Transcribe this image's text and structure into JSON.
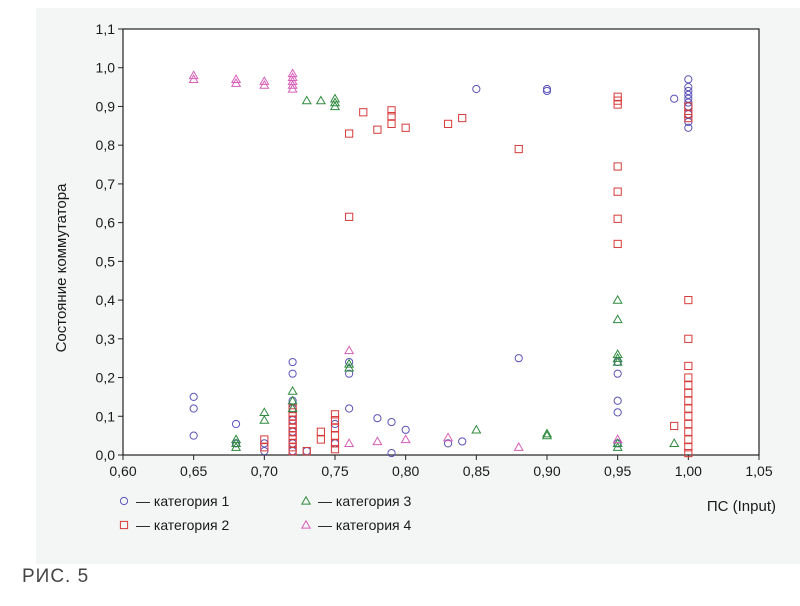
{
  "figure_caption": "РИС. 5",
  "chart_data": {
    "type": "scatter",
    "title": "",
    "xlabel": "ПС (Input)",
    "ylabel": "Состояние коммутатора",
    "xlim": [
      0.6,
      1.05
    ],
    "ylim": [
      0.0,
      1.1
    ],
    "xticks": [
      0.6,
      0.65,
      0.7,
      0.75,
      0.8,
      0.85,
      0.9,
      0.95,
      1.0,
      1.05
    ],
    "yticks": [
      0.0,
      0.1,
      0.2,
      0.3,
      0.4,
      0.5,
      0.6,
      0.7,
      0.8,
      0.9,
      1.0,
      1.1
    ],
    "xtick_labels": [
      "0,60",
      "0,65",
      "0,70",
      "0,75",
      "0,80",
      "0,85",
      "0,90",
      "0,95",
      "1,00",
      "1,05"
    ],
    "ytick_labels": [
      "0,0",
      "0,1",
      "0,2",
      "0,3",
      "0,4",
      "0,5",
      "0,6",
      "0,7",
      "0,8",
      "0,9",
      "1,0",
      "1,1"
    ],
    "grid": false,
    "legend_position": "bottom-left",
    "series": [
      {
        "name": "— категория 1",
        "marker": "circle",
        "color": "#5a52b8",
        "points": [
          [
            0.65,
            0.15
          ],
          [
            0.65,
            0.12
          ],
          [
            0.65,
            0.05
          ],
          [
            0.68,
            0.08
          ],
          [
            0.68,
            0.03
          ],
          [
            0.7,
            0.03
          ],
          [
            0.7,
            0.01
          ],
          [
            0.72,
            0.24
          ],
          [
            0.72,
            0.21
          ],
          [
            0.72,
            0.14
          ],
          [
            0.72,
            0.12
          ],
          [
            0.72,
            0.09
          ],
          [
            0.72,
            0.06
          ],
          [
            0.72,
            0.03
          ],
          [
            0.72,
            0.01
          ],
          [
            0.73,
            0.01
          ],
          [
            0.75,
            0.08
          ],
          [
            0.75,
            0.03
          ],
          [
            0.76,
            0.24
          ],
          [
            0.76,
            0.21
          ],
          [
            0.76,
            0.12
          ],
          [
            0.78,
            0.095
          ],
          [
            0.79,
            0.085
          ],
          [
            0.79,
            0.005
          ],
          [
            0.8,
            0.065
          ],
          [
            0.83,
            0.03
          ],
          [
            0.84,
            0.035
          ],
          [
            0.85,
            0.945
          ],
          [
            0.88,
            0.25
          ],
          [
            0.9,
            0.945
          ],
          [
            0.9,
            0.94
          ],
          [
            0.95,
            0.24
          ],
          [
            0.95,
            0.21
          ],
          [
            0.95,
            0.14
          ],
          [
            0.95,
            0.11
          ],
          [
            0.95,
            0.03
          ],
          [
            0.99,
            0.92
          ],
          [
            1.0,
            0.97
          ],
          [
            1.0,
            0.95
          ],
          [
            1.0,
            0.94
          ],
          [
            1.0,
            0.93
          ],
          [
            1.0,
            0.92
          ],
          [
            1.0,
            0.91
          ],
          [
            1.0,
            0.9
          ],
          [
            1.0,
            0.88
          ],
          [
            1.0,
            0.86
          ],
          [
            1.0,
            0.845
          ]
        ]
      },
      {
        "name": "— категория 2",
        "marker": "square",
        "color": "#d63a3a",
        "points": [
          [
            0.7,
            0.04
          ],
          [
            0.7,
            0.02
          ],
          [
            0.72,
            0.12
          ],
          [
            0.72,
            0.11
          ],
          [
            0.72,
            0.1
          ],
          [
            0.72,
            0.09
          ],
          [
            0.72,
            0.08
          ],
          [
            0.72,
            0.07
          ],
          [
            0.72,
            0.06
          ],
          [
            0.72,
            0.05
          ],
          [
            0.72,
            0.04
          ],
          [
            0.72,
            0.03
          ],
          [
            0.72,
            0.02
          ],
          [
            0.72,
            0.01
          ],
          [
            0.73,
            0.01
          ],
          [
            0.74,
            0.06
          ],
          [
            0.74,
            0.04
          ],
          [
            0.75,
            0.105
          ],
          [
            0.75,
            0.09
          ],
          [
            0.75,
            0.07
          ],
          [
            0.75,
            0.05
          ],
          [
            0.75,
            0.03
          ],
          [
            0.75,
            0.015
          ],
          [
            0.76,
            0.83
          ],
          [
            0.76,
            0.615
          ],
          [
            0.77,
            0.885
          ],
          [
            0.78,
            0.84
          ],
          [
            0.79,
            0.89
          ],
          [
            0.79,
            0.875
          ],
          [
            0.79,
            0.855
          ],
          [
            0.8,
            0.845
          ],
          [
            0.83,
            0.855
          ],
          [
            0.84,
            0.87
          ],
          [
            0.88,
            0.79
          ],
          [
            0.95,
            0.925
          ],
          [
            0.95,
            0.915
          ],
          [
            0.95,
            0.905
          ],
          [
            0.95,
            0.745
          ],
          [
            0.95,
            0.68
          ],
          [
            0.95,
            0.61
          ],
          [
            0.95,
            0.545
          ],
          [
            0.99,
            0.075
          ],
          [
            1.0,
            0.9
          ],
          [
            1.0,
            0.88
          ],
          [
            1.0,
            0.87
          ],
          [
            1.0,
            0.4
          ],
          [
            1.0,
            0.3
          ],
          [
            1.0,
            0.23
          ],
          [
            1.0,
            0.2
          ],
          [
            1.0,
            0.18
          ],
          [
            1.0,
            0.16
          ],
          [
            1.0,
            0.14
          ],
          [
            1.0,
            0.12
          ],
          [
            1.0,
            0.1
          ],
          [
            1.0,
            0.08
          ],
          [
            1.0,
            0.06
          ],
          [
            1.0,
            0.04
          ],
          [
            1.0,
            0.02
          ],
          [
            1.0,
            0.005
          ]
        ]
      },
      {
        "name": "— категория 3",
        "marker": "triangle",
        "color": "#2e8b3e",
        "points": [
          [
            0.68,
            0.04
          ],
          [
            0.68,
            0.03
          ],
          [
            0.68,
            0.02
          ],
          [
            0.7,
            0.11
          ],
          [
            0.7,
            0.09
          ],
          [
            0.72,
            0.165
          ],
          [
            0.72,
            0.14
          ],
          [
            0.72,
            0.12
          ],
          [
            0.73,
            0.915
          ],
          [
            0.74,
            0.915
          ],
          [
            0.75,
            0.92
          ],
          [
            0.75,
            0.91
          ],
          [
            0.75,
            0.9
          ],
          [
            0.76,
            0.235
          ],
          [
            0.76,
            0.225
          ],
          [
            0.85,
            0.065
          ],
          [
            0.9,
            0.055
          ],
          [
            0.9,
            0.05
          ],
          [
            0.95,
            0.4
          ],
          [
            0.95,
            0.35
          ],
          [
            0.95,
            0.26
          ],
          [
            0.95,
            0.25
          ],
          [
            0.95,
            0.24
          ],
          [
            0.95,
            0.03
          ],
          [
            0.95,
            0.02
          ],
          [
            0.99,
            0.03
          ]
        ]
      },
      {
        "name": "— категория 4",
        "marker": "triangle",
        "color": "#d65fb8",
        "points": [
          [
            0.65,
            0.98
          ],
          [
            0.65,
            0.97
          ],
          [
            0.68,
            0.97
          ],
          [
            0.68,
            0.96
          ],
          [
            0.7,
            0.965
          ],
          [
            0.7,
            0.955
          ],
          [
            0.72,
            0.985
          ],
          [
            0.72,
            0.975
          ],
          [
            0.72,
            0.965
          ],
          [
            0.72,
            0.955
          ],
          [
            0.72,
            0.945
          ],
          [
            0.76,
            0.27
          ],
          [
            0.76,
            0.03
          ],
          [
            0.78,
            0.035
          ],
          [
            0.8,
            0.04
          ],
          [
            0.83,
            0.045
          ],
          [
            0.88,
            0.02
          ],
          [
            0.95,
            0.04
          ]
        ]
      }
    ]
  }
}
